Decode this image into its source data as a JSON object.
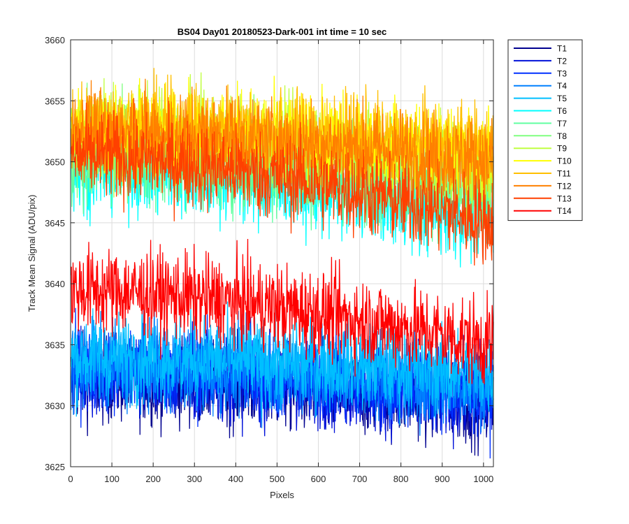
{
  "chart_data": {
    "type": "line",
    "title": "BS04 Day01 20180523-Dark-001 int time = 10 sec",
    "xlabel": "Pixels",
    "ylabel": "Track Mean Signal (ADU/pix)",
    "xlim": [
      0,
      1024
    ],
    "ylim": [
      3625,
      3660
    ],
    "xticks": [
      0,
      100,
      200,
      300,
      400,
      500,
      600,
      700,
      800,
      900,
      1000
    ],
    "yticks": [
      3625,
      3630,
      3635,
      3640,
      3645,
      3650,
      3655,
      3660
    ],
    "grid": true,
    "legend_position": "outside-top-right",
    "n_points": 1024,
    "series": [
      {
        "name": "T1",
        "color": "#00008F",
        "start": 3632.2,
        "end": 3630.2,
        "noise": 1.8
      },
      {
        "name": "T2",
        "color": "#0010D9",
        "start": 3632.6,
        "end": 3630.6,
        "noise": 1.8
      },
      {
        "name": "T3",
        "color": "#0030FF",
        "start": 3633.0,
        "end": 3631.0,
        "noise": 1.8
      },
      {
        "name": "T4",
        "color": "#0080FF",
        "start": 3633.4,
        "end": 3631.6,
        "noise": 1.8
      },
      {
        "name": "T5",
        "color": "#00BFFF",
        "start": 3634.0,
        "end": 3632.6,
        "noise": 1.8
      },
      {
        "name": "T6",
        "color": "#00FFFF",
        "start": 3649.5,
        "end": 3645.0,
        "noise": 1.8
      },
      {
        "name": "T7",
        "color": "#60FFA0",
        "start": 3650.2,
        "end": 3647.0,
        "noise": 1.8
      },
      {
        "name": "T8",
        "color": "#80FF80",
        "start": 3651.5,
        "end": 3648.5,
        "noise": 1.8
      },
      {
        "name": "T9",
        "color": "#C0FF40",
        "start": 3652.5,
        "end": 3649.5,
        "noise": 1.8
      },
      {
        "name": "T10",
        "color": "#FFFF00",
        "start": 3653.0,
        "end": 3650.5,
        "noise": 1.8
      },
      {
        "name": "T11",
        "color": "#FFBF00",
        "start": 3653.0,
        "end": 3651.0,
        "noise": 1.8
      },
      {
        "name": "T12",
        "color": "#FF8000",
        "start": 3652.5,
        "end": 3650.0,
        "noise": 1.8
      },
      {
        "name": "T13",
        "color": "#FF4000",
        "start": 3650.5,
        "end": 3645.0,
        "noise": 1.8
      },
      {
        "name": "T14",
        "color": "#FF0000",
        "start": 3639.5,
        "end": 3635.0,
        "noise": 1.8
      }
    ]
  }
}
